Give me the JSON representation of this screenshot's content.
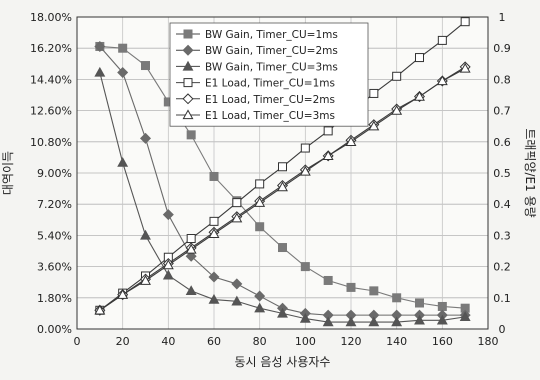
{
  "chart_data": {
    "type": "line",
    "title": "",
    "xlabel": "동시 음성 사용자수",
    "ylabel_left": "대역이득",
    "ylabel_right": "트래픽양/E1 용량",
    "x_ticks": [
      "0",
      "20",
      "40",
      "60",
      "80",
      "100",
      "120",
      "140",
      "160",
      "180"
    ],
    "y_left_ticks": [
      "0.00%",
      "1.80%",
      "3.60%",
      "5.40%",
      "7.20%",
      "9.00%",
      "10.80%",
      "12.60%",
      "14.40%",
      "16.20%",
      "18.00%"
    ],
    "y_right_ticks": [
      "0",
      "0.1",
      "0.2",
      "0.3",
      "0.4",
      "0.5",
      "0.6",
      "0.7",
      "0.8",
      "0.9",
      "1"
    ],
    "xlim": [
      0,
      180
    ],
    "ylim_left": [
      0,
      18
    ],
    "ylim_right": [
      0,
      1
    ],
    "grid": true,
    "legend_position": "top-right",
    "series": [
      {
        "name": "BW Gain, Timer_CU=1ms",
        "axis": "left",
        "marker": "square-filled",
        "color": "#7a7a7a",
        "x": [
          10,
          20,
          30,
          40,
          50,
          60,
          70,
          80,
          90,
          100,
          110,
          120,
          130,
          140,
          150,
          160,
          170
        ],
        "y": [
          16.3,
          16.2,
          15.2,
          13.1,
          11.2,
          8.8,
          7.4,
          5.9,
          4.7,
          3.6,
          2.8,
          2.4,
          2.2,
          1.8,
          1.5,
          1.3,
          1.2
        ]
      },
      {
        "name": "BW Gain, Timer_CU=2ms",
        "axis": "left",
        "marker": "diamond-filled",
        "color": "#6a6a6a",
        "x": [
          10,
          20,
          30,
          40,
          50,
          60,
          70,
          80,
          90,
          100,
          110,
          120,
          130,
          140,
          150,
          160,
          170
        ],
        "y": [
          16.3,
          14.8,
          11.0,
          6.6,
          4.2,
          3.0,
          2.6,
          1.9,
          1.2,
          0.9,
          0.8,
          0.8,
          0.8,
          0.8,
          0.8,
          0.8,
          0.8
        ]
      },
      {
        "name": "BW Gain, Timer_CU=3ms",
        "axis": "left",
        "marker": "triangle-filled",
        "color": "#555555",
        "x": [
          10,
          20,
          30,
          40,
          50,
          60,
          70,
          80,
          90,
          100,
          110,
          120,
          130,
          140,
          150,
          160,
          170
        ],
        "y": [
          14.8,
          9.6,
          5.4,
          3.1,
          2.2,
          1.7,
          1.6,
          1.2,
          0.9,
          0.6,
          0.4,
          0.4,
          0.4,
          0.4,
          0.5,
          0.5,
          0.7
        ]
      },
      {
        "name": "E1 Load, Timer_CU=1ms",
        "axis": "right",
        "marker": "square-open",
        "color": "#444444",
        "x": [
          10,
          20,
          30,
          40,
          50,
          60,
          70,
          80,
          90,
          100,
          110,
          120,
          130,
          140,
          150,
          160,
          170
        ],
        "y": [
          0.06,
          0.115,
          0.17,
          0.23,
          0.29,
          0.345,
          0.405,
          0.465,
          0.52,
          0.58,
          0.635,
          0.695,
          0.755,
          0.81,
          0.87,
          0.925,
          0.985
        ]
      },
      {
        "name": "E1 Load, Timer_CU=2ms",
        "axis": "right",
        "marker": "diamond-open",
        "color": "#444444",
        "x": [
          10,
          20,
          30,
          40,
          50,
          60,
          70,
          80,
          90,
          100,
          110,
          120,
          130,
          140,
          150,
          160,
          170
        ],
        "y": [
          0.06,
          0.11,
          0.16,
          0.21,
          0.26,
          0.31,
          0.36,
          0.41,
          0.46,
          0.51,
          0.555,
          0.605,
          0.655,
          0.705,
          0.745,
          0.795,
          0.84
        ]
      },
      {
        "name": "E1 Load, Timer_CU=3ms",
        "axis": "right",
        "marker": "triangle-open",
        "color": "#444444",
        "x": [
          10,
          20,
          30,
          40,
          50,
          60,
          70,
          80,
          90,
          100,
          110,
          120,
          130,
          140,
          150,
          160,
          170
        ],
        "y": [
          0.06,
          0.11,
          0.155,
          0.205,
          0.255,
          0.305,
          0.355,
          0.405,
          0.455,
          0.505,
          0.555,
          0.6,
          0.65,
          0.7,
          0.745,
          0.795,
          0.835
        ]
      }
    ]
  }
}
